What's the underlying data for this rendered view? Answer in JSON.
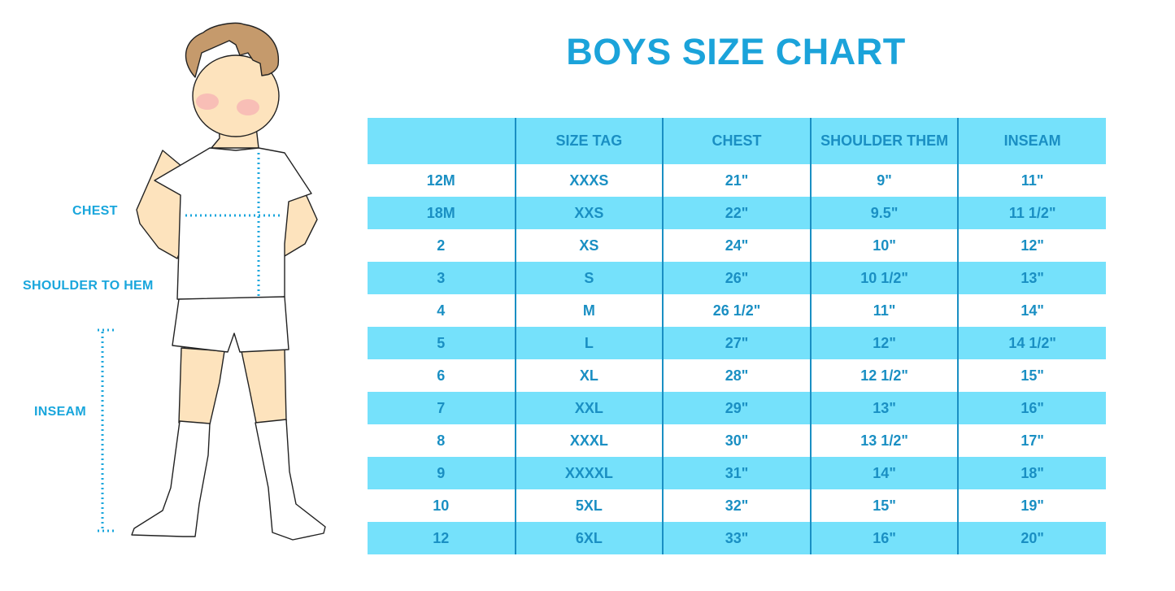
{
  "title": "BOYS SIZE CHART",
  "figure": {
    "labels": {
      "chest": "CHEST",
      "shoulder_to_hem": "SHOULDER TO HEM",
      "inseam": "INSEAM"
    },
    "colors": {
      "label": "#19a6dc",
      "skin": "#fde3bd",
      "hair": "#c59a6c",
      "dotted_line": "#19a6dc"
    }
  },
  "table": {
    "headers": [
      "",
      "SIZE TAG",
      "CHEST",
      "SHOULDER THEM",
      "INSEAM"
    ],
    "rows": [
      [
        "12M",
        "XXXS",
        "21\"",
        "9\"",
        "11\""
      ],
      [
        "18M",
        "XXS",
        "22\"",
        "9.5\"",
        "11 1/2\""
      ],
      [
        "2",
        "XS",
        "24\"",
        "10\"",
        "12\""
      ],
      [
        "3",
        "S",
        "26\"",
        "10 1/2\"",
        "13\""
      ],
      [
        "4",
        "M",
        "26 1/2\"",
        "11\"",
        "14\""
      ],
      [
        "5",
        "L",
        "27\"",
        "12\"",
        "14 1/2\""
      ],
      [
        "6",
        "XL",
        "28\"",
        "12 1/2\"",
        "15\""
      ],
      [
        "7",
        "XXL",
        "29\"",
        "13\"",
        "16\""
      ],
      [
        "8",
        "XXXL",
        "30\"",
        "13 1/2\"",
        "17\""
      ],
      [
        "9",
        "XXXXL",
        "31\"",
        "14\"",
        "18\""
      ],
      [
        "10",
        "5XL",
        "32\"",
        "15\"",
        "19\""
      ],
      [
        "12",
        "6XL",
        "33\"",
        "16\"",
        "20\""
      ]
    ],
    "colors": {
      "stripe": "#75e1fb",
      "text": "#1a8fc3",
      "title": "#1ba3da"
    }
  }
}
